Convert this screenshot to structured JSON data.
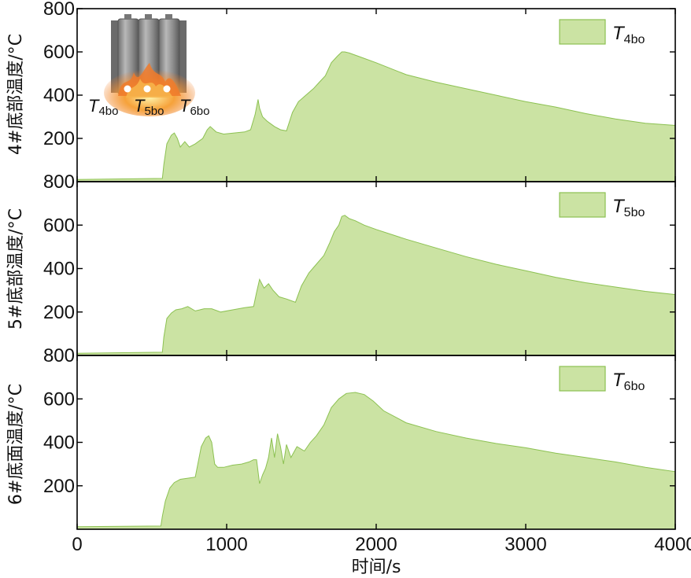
{
  "chart_data": [
    {
      "type": "area",
      "ylabel": "4#底部温度/°C",
      "legend": {
        "name": "T",
        "sub": "4bo",
        "placement": "top-right"
      },
      "xlim": [
        0,
        4000
      ],
      "ylim": [
        0,
        800
      ],
      "yticks": [
        200,
        400,
        600,
        800
      ],
      "fill": "#cbe3a3",
      "stroke": "#8cc152",
      "x": [
        0,
        570,
        580,
        600,
        630,
        650,
        670,
        690,
        720,
        750,
        790,
        840,
        870,
        890,
        930,
        980,
        1050,
        1120,
        1160,
        1190,
        1210,
        1220,
        1240,
        1270,
        1290,
        1320,
        1360,
        1400,
        1440,
        1480,
        1530,
        1580,
        1620,
        1660,
        1700,
        1740,
        1770,
        1790,
        1820,
        1860,
        1900,
        2000,
        2200,
        2400,
        2600,
        2800,
        3000,
        3200,
        3400,
        3600,
        3800,
        4000
      ],
      "y": [
        10,
        15,
        80,
        175,
        215,
        225,
        200,
        160,
        185,
        160,
        175,
        200,
        240,
        255,
        230,
        220,
        225,
        230,
        240,
        310,
        380,
        340,
        300,
        280,
        270,
        255,
        240,
        235,
        320,
        370,
        400,
        430,
        460,
        490,
        550,
        580,
        600,
        600,
        595,
        585,
        575,
        550,
        495,
        460,
        430,
        400,
        370,
        345,
        315,
        290,
        270,
        260
      ]
    },
    {
      "type": "area",
      "ylabel": "5#底部温度/°C",
      "legend": {
        "name": "T",
        "sub": "5bo",
        "placement": "top-right"
      },
      "xlim": [
        0,
        4000
      ],
      "ylim": [
        0,
        800
      ],
      "yticks": [
        200,
        400,
        600,
        800
      ],
      "fill": "#cbe3a3",
      "stroke": "#8cc152",
      "x": [
        0,
        570,
        580,
        600,
        630,
        660,
        700,
        740,
        790,
        850,
        900,
        960,
        1040,
        1120,
        1180,
        1200,
        1220,
        1250,
        1280,
        1310,
        1350,
        1400,
        1460,
        1500,
        1550,
        1600,
        1650,
        1690,
        1720,
        1750,
        1770,
        1790,
        1820,
        1860,
        1920,
        2000,
        2200,
        2400,
        2600,
        2800,
        3000,
        3200,
        3400,
        3600,
        3800,
        4000
      ],
      "y": [
        10,
        15,
        85,
        170,
        195,
        210,
        215,
        225,
        205,
        215,
        215,
        200,
        210,
        220,
        225,
        290,
        350,
        310,
        330,
        300,
        270,
        260,
        245,
        320,
        380,
        420,
        460,
        520,
        570,
        600,
        640,
        645,
        630,
        620,
        600,
        580,
        535,
        495,
        455,
        420,
        390,
        360,
        335,
        315,
        295,
        280
      ]
    },
    {
      "type": "area",
      "ylabel": "6#底面温度/°C",
      "legend": {
        "name": "T",
        "sub": "6bo",
        "placement": "top-right"
      },
      "xlim": [
        0,
        4000
      ],
      "ylim": [
        0,
        800
      ],
      "yticks": [
        200,
        400,
        600,
        800
      ],
      "xticks": [
        0,
        1000,
        2000,
        3000,
        4000
      ],
      "xlabel": "时间/s",
      "fill": "#cbe3a3",
      "stroke": "#8cc152",
      "x": [
        0,
        560,
        570,
        590,
        620,
        650,
        690,
        740,
        790,
        830,
        860,
        880,
        900,
        920,
        940,
        980,
        1040,
        1100,
        1150,
        1180,
        1200,
        1220,
        1240,
        1260,
        1280,
        1300,
        1320,
        1340,
        1360,
        1380,
        1400,
        1430,
        1470,
        1520,
        1560,
        1600,
        1650,
        1700,
        1750,
        1800,
        1860,
        1920,
        1980,
        2050,
        2200,
        2400,
        2600,
        2800,
        3000,
        3200,
        3400,
        3600,
        3800,
        4000
      ],
      "y": [
        12,
        15,
        60,
        130,
        190,
        215,
        230,
        235,
        240,
        380,
        420,
        430,
        400,
        300,
        285,
        285,
        295,
        300,
        310,
        320,
        320,
        210,
        250,
        280,
        330,
        420,
        330,
        440,
        380,
        300,
        390,
        330,
        380,
        360,
        400,
        430,
        480,
        560,
        600,
        625,
        630,
        620,
        590,
        545,
        490,
        450,
        420,
        395,
        375,
        350,
        330,
        310,
        285,
        265
      ]
    }
  ],
  "inset": {
    "labels": [
      {
        "name": "T",
        "sub": "4bo"
      },
      {
        "name": "T",
        "sub": "5bo"
      },
      {
        "name": "T",
        "sub": "6bo"
      }
    ]
  },
  "colors": {
    "fill": "#cbe3a3",
    "stroke": "#8cc152",
    "axis": "#000000",
    "flame": "#f07a2a"
  }
}
